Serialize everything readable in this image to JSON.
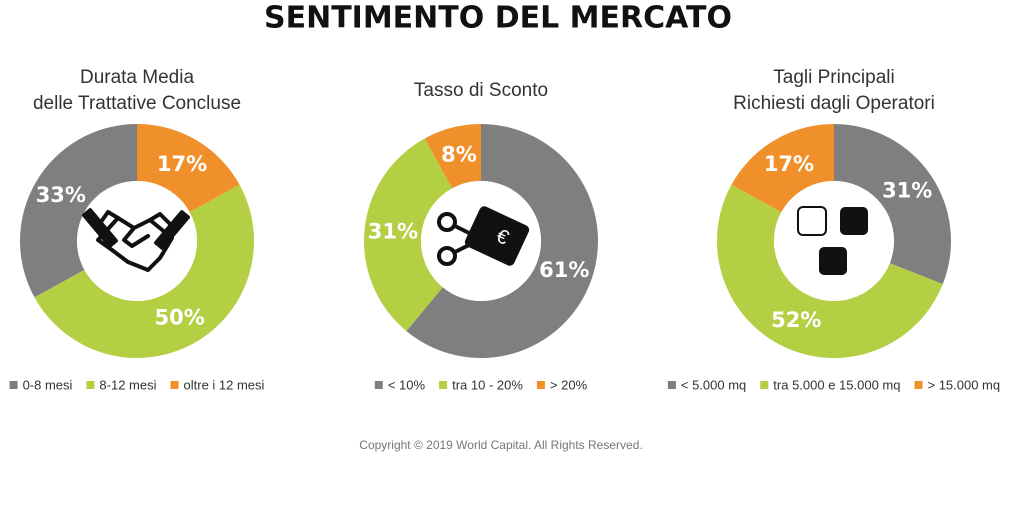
{
  "title": "SENTIMENTO DEL MERCATO",
  "footer": "Copyright © 2019 World Capital. All Rights Reserved.",
  "chart_data": [
    {
      "type": "donut",
      "title": [
        "Durata Media",
        "delle Trattative Concluse"
      ],
      "categories": [
        "0-8 mesi",
        "8-12 mesi",
        "oltre i 12 mesi"
      ],
      "values": [
        33,
        50,
        17
      ],
      "value_labels": [
        "33%",
        "50%",
        "17%"
      ],
      "colors": [
        "#7f7f7f",
        "#b5cf45",
        "#f0902a"
      ],
      "direction": "counterclockwise"
    },
    {
      "type": "donut",
      "title": [
        "Tasso di Sconto"
      ],
      "categories": [
        "< 10%",
        "tra 10 - 20%",
        "> 20%"
      ],
      "values": [
        61,
        31,
        8
      ],
      "value_labels": [
        "61%",
        "31%",
        "8%"
      ],
      "colors": [
        "#7f7f7f",
        "#b5cf45",
        "#f0902a"
      ],
      "direction": "clockwise"
    },
    {
      "type": "donut",
      "title": [
        "Tagli Principali",
        "Richiesti dagli Operatori"
      ],
      "categories": [
        "< 5.000 mq",
        "tra 5.000 e 15.000 mq",
        "> 15.000 mq"
      ],
      "values": [
        31,
        52,
        17
      ],
      "value_labels": [
        "31%",
        "52%",
        "17%"
      ],
      "colors": [
        "#7f7f7f",
        "#b5cf45",
        "#f0902a"
      ],
      "direction": "clockwise"
    }
  ]
}
